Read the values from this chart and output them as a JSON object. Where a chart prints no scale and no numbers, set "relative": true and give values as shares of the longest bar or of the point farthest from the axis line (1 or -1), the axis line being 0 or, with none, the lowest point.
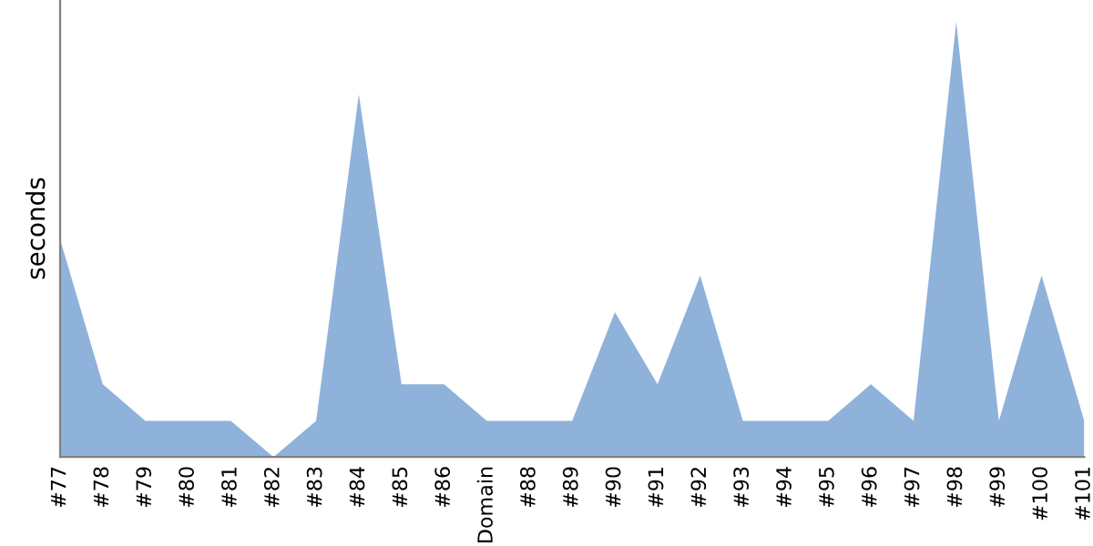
{
  "chart_data": {
    "type": "area",
    "ylabel": "seconds",
    "relative": true,
    "grid": false,
    "legend": false,
    "categories": [
      "#77",
      "#78",
      "#79",
      "#80",
      "#81",
      "#82",
      "#83",
      "#84",
      "#85",
      "#86",
      "Domain",
      "#88",
      "#89",
      "#90",
      "#91",
      "#92",
      "#93",
      "#94",
      "#95",
      "#96",
      "#97",
      "#98",
      "#99",
      "#100",
      "#101"
    ],
    "series": [
      {
        "color": "#8fb2da",
        "values": [
          0.5,
          0.167,
          0.083,
          0.083,
          0.083,
          0,
          0.083,
          0.833,
          0.167,
          0.167,
          0.083,
          0.083,
          0.083,
          0.333,
          0.167,
          0.417,
          0.083,
          0.083,
          0.083,
          0.167,
          0.083,
          1,
          0.083,
          0.417,
          0.083
        ]
      }
    ]
  }
}
